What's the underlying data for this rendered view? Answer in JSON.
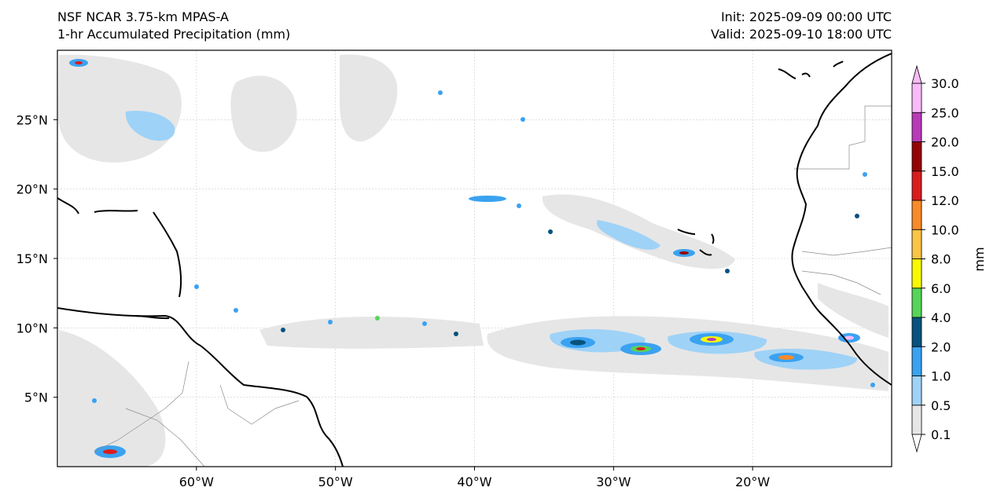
{
  "header": {
    "model": "NSF NCAR 3.75-km MPAS-A",
    "field": "1-hr Accumulated Precipitation (mm)",
    "init": "Init: 2025-09-09 00:00 UTC",
    "valid": "Valid: 2025-09-10 18:00 UTC"
  },
  "map": {
    "lon_range": [
      -70,
      -10
    ],
    "lat_range": [
      0,
      30
    ],
    "lon_ticks": [
      -60,
      -50,
      -40,
      -30,
      -20
    ],
    "lon_tick_labels": [
      "60°W",
      "50°W",
      "40°W",
      "30°W",
      "20°W"
    ],
    "lat_ticks": [
      5,
      10,
      15,
      20,
      25
    ],
    "lat_tick_labels": [
      "5°N",
      "10°N",
      "15°N",
      "20°N",
      "25°N"
    ]
  },
  "colorbar": {
    "label": "mm",
    "levels": [
      "0.1",
      "0.5",
      "1.0",
      "2.0",
      "4.0",
      "6.0",
      "8.0",
      "10.0",
      "12.0",
      "15.0",
      "20.0",
      "25.0",
      "30.0"
    ],
    "colors": [
      "#e6e6e6",
      "#9fd2f7",
      "#3aa2f1",
      "#07527e",
      "#57d45a",
      "#f8f800",
      "#fbc446",
      "#f88a2a",
      "#d91d1d",
      "#950404",
      "#b939b9",
      "#f8bbf8"
    ]
  },
  "colors": {
    "coast": "#000000",
    "border": "#8c8c8c",
    "grid": "#cccccc"
  }
}
